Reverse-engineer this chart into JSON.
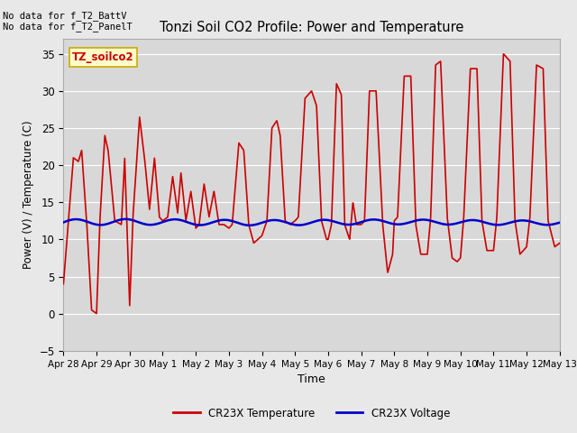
{
  "title": "Tonzi Soil CO2 Profile: Power and Temperature",
  "ylabel": "Power (V) / Temperature (C)",
  "xlabel": "Time",
  "ylim": [
    -5,
    37
  ],
  "yticks": [
    -5,
    0,
    5,
    10,
    15,
    20,
    25,
    30,
    35
  ],
  "top_left_text": "No data for f_T2_BattV\nNo data for f_T2_PanelT",
  "legend_box_label": "TZ_soilco2",
  "legend_box_color": "#ffffcc",
  "legend_box_border": "#ccaa00",
  "xtick_labels": [
    "Apr 28",
    "Apr 29",
    "Apr 30",
    "May 1",
    "May 2",
    "May 3",
    "May 4",
    "May 5",
    "May 6",
    "May 7",
    "May 8",
    "May 9",
    "May 10",
    "May 11",
    "May 12",
    "May 13"
  ],
  "temp_color": "#cc0000",
  "volt_color": "#0000cc",
  "temp_linewidth": 1.2,
  "volt_linewidth": 1.8,
  "legend_temp": "CR23X Temperature",
  "legend_volt": "CR23X Voltage",
  "fig_facecolor": "#e8e8e8",
  "ax_facecolor": "#d8d8d8"
}
